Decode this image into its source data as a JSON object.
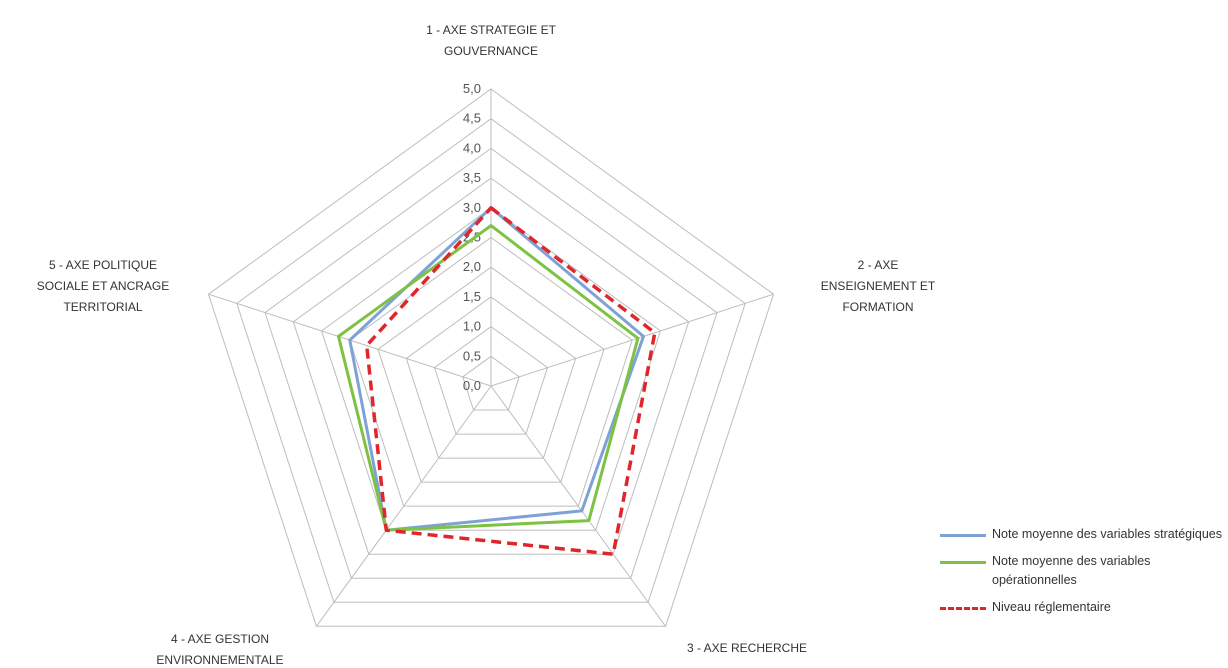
{
  "chart_data": {
    "type": "radar",
    "axes": [
      [
        "1 - AXE STRATEGIE ET",
        "GOUVERNANCE"
      ],
      [
        "2 - AXE",
        "ENSEIGNEMENT ET",
        "FORMATION"
      ],
      [
        "3 - AXE RECHERCHE"
      ],
      [
        "4 - AXE GESTION",
        "ENVIRONNEMENTALE"
      ],
      [
        "5 - AXE POLITIQUE",
        "SOCIALE ET ANCRAGE",
        "TERRITORIAL"
      ]
    ],
    "rlim": [
      0,
      5
    ],
    "ticks": [
      "0,0",
      "0,5",
      "1,0",
      "1,5",
      "2,0",
      "2,5",
      "3,0",
      "3,5",
      "4,0",
      "4,5",
      "5,0"
    ],
    "series": [
      {
        "name": "Note moyenne des variables stratégiques",
        "color": "#7fa2d6",
        "dash": false,
        "values": [
          3.0,
          2.7,
          2.6,
          3.0,
          2.5
        ]
      },
      {
        "name": "Note moyenne des variables opérationnelles",
        "color": "#7dc242",
        "dash": false,
        "values": [
          2.7,
          2.6,
          2.8,
          3.0,
          2.7
        ]
      },
      {
        "name": "Niveau réglementaire",
        "color": "#e0252b",
        "dash": true,
        "values": [
          3.0,
          2.9,
          3.5,
          3.0,
          2.2
        ]
      }
    ],
    "legend_position": "bottom-right"
  }
}
